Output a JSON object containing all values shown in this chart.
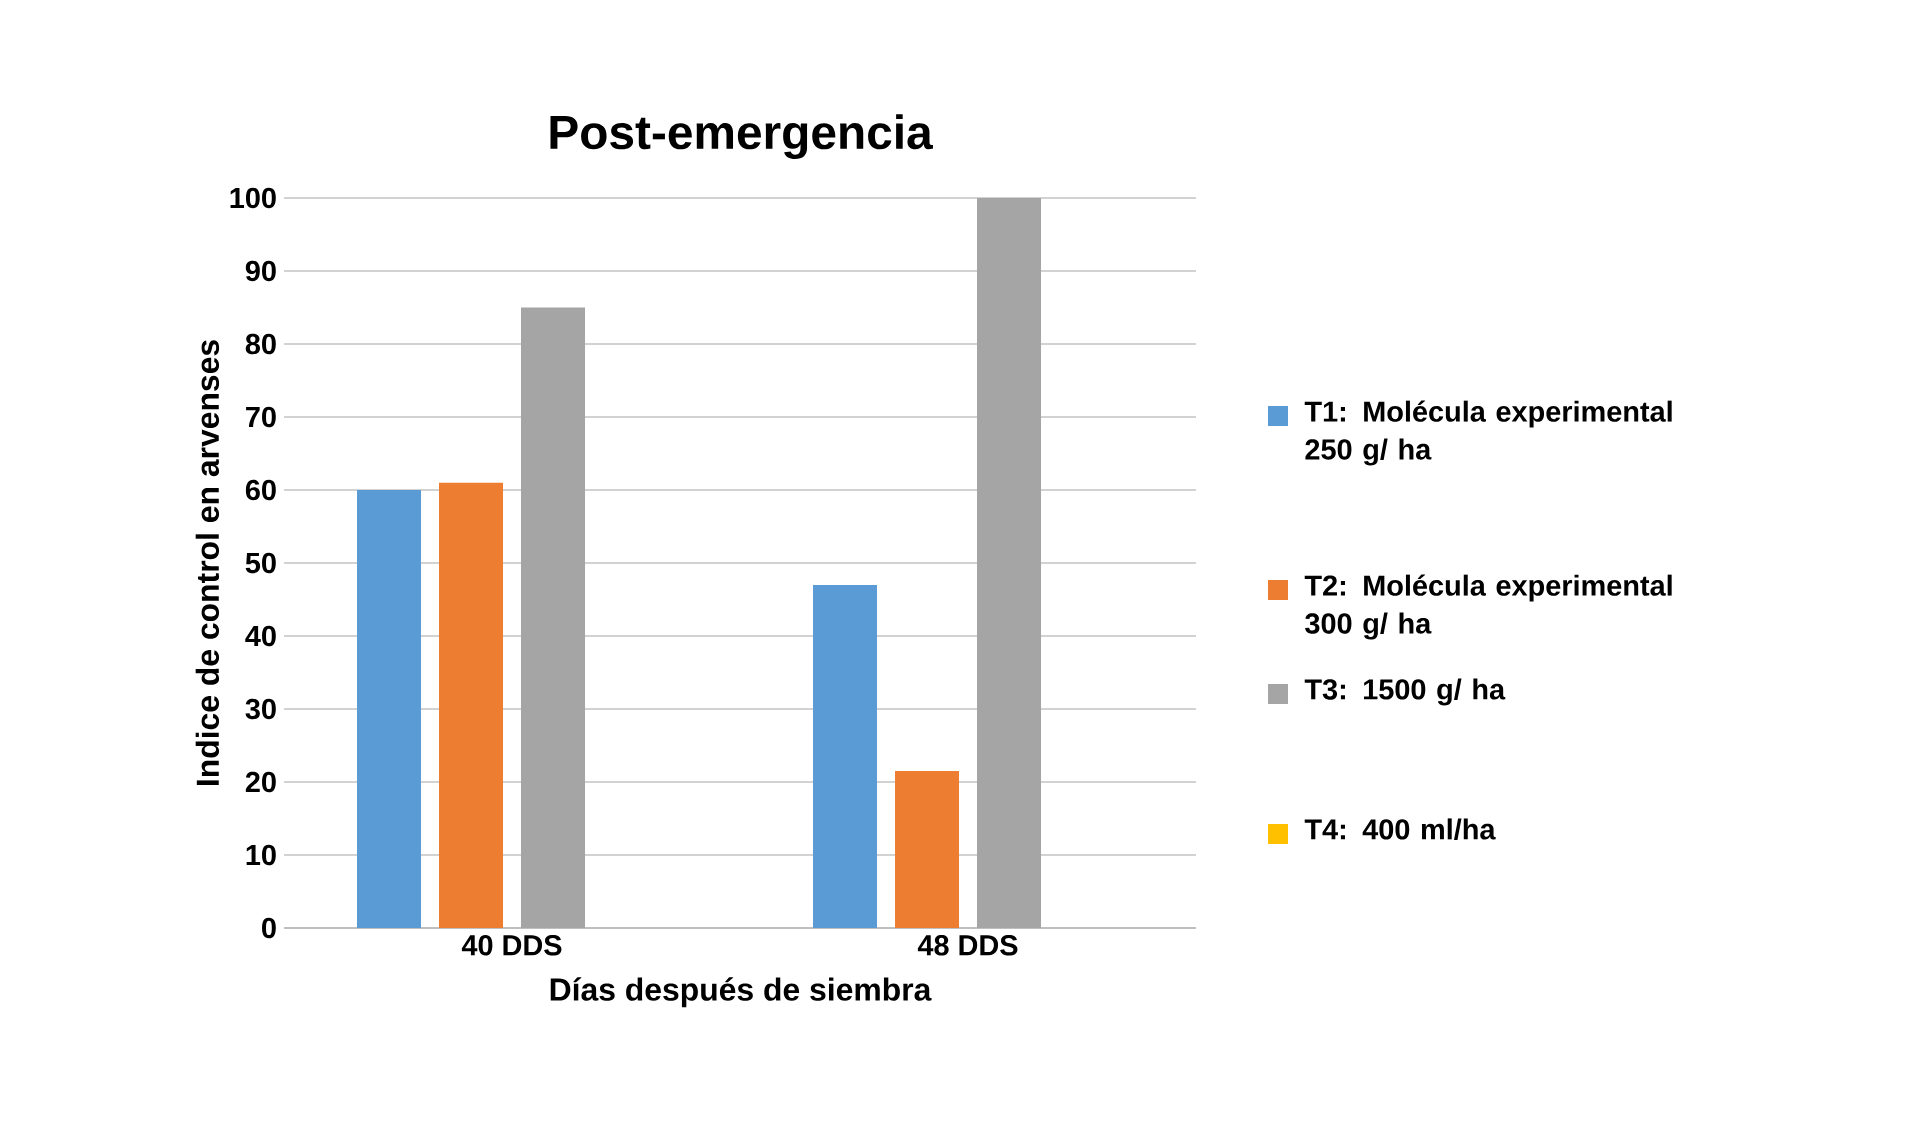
{
  "chart_data": {
    "type": "bar",
    "title": "Post-emergencia",
    "xlabel": "Días después de siembra",
    "ylabel": "Indice de control en arvenses",
    "categories": [
      "40 DDS",
      "48 DDS"
    ],
    "series": [
      {
        "name": "T1: Molécula experimental 250 g/ ha",
        "color": "#5b9bd5",
        "values": [
          60,
          47
        ]
      },
      {
        "name": "T2: Molécula experimental 300 g/ ha",
        "color": "#ed7d31",
        "values": [
          61,
          21.5
        ]
      },
      {
        "name": "T3: 1500 g/ ha",
        "color": "#a5a5a5",
        "values": [
          85,
          100
        ]
      },
      {
        "name": "T4: 400 ml/ha",
        "color": "#ffc000",
        "values": [
          0,
          0
        ]
      }
    ],
    "ylim": [
      0,
      100
    ],
    "yticks": [
      0,
      10,
      20,
      30,
      40,
      50,
      60,
      70,
      80,
      90,
      100
    ],
    "grid": "y",
    "legend": "right"
  }
}
